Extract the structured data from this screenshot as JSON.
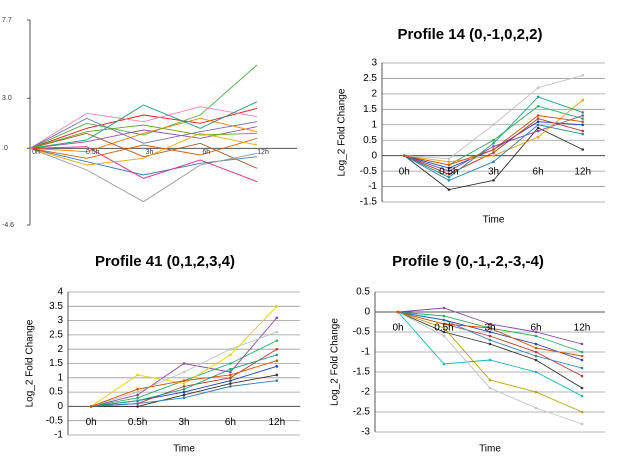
{
  "chart_data": [
    {
      "type": "line",
      "grid": false,
      "categories": [
        "0h",
        "0.5h",
        "3h",
        "6h",
        "12h"
      ],
      "ylim": [
        -4.6,
        7.7
      ],
      "yticks": [
        -4.6,
        {
          "value": 0,
          "label": ".0"
        },
        {
          "value": 3,
          "label": "3.0"
        },
        7.7
      ],
      "series": [
        {
          "color": "#e41a1c",
          "values": [
            0,
            1.2,
            2.0,
            1.5,
            2.4
          ]
        },
        {
          "color": "#377eb8",
          "values": [
            0,
            -0.8,
            -1.6,
            -0.9,
            -0.5
          ]
        },
        {
          "color": "#4daf4a",
          "values": [
            0,
            1.5,
            0.8,
            2.0,
            5.0
          ]
        },
        {
          "color": "#984ea3",
          "values": [
            0,
            0.4,
            1.1,
            0.6,
            1.3
          ]
        },
        {
          "color": "#ff7f00",
          "values": [
            0,
            -0.2,
            0.9,
            1.8,
            1.0
          ]
        },
        {
          "color": "#a65628",
          "values": [
            0,
            0.9,
            -0.5,
            0.3,
            -1.2
          ]
        },
        {
          "color": "#f781bf",
          "values": [
            0,
            2.1,
            1.6,
            2.5,
            1.9
          ]
        },
        {
          "color": "#999999",
          "values": [
            0,
            -1.3,
            -3.2,
            -1.0,
            -0.3
          ]
        },
        {
          "color": "#1b9e77",
          "values": [
            0,
            0.5,
            2.6,
            1.2,
            2.8
          ]
        },
        {
          "color": "#d95f02",
          "values": [
            0,
            -0.6,
            0.2,
            -0.4,
            0.6
          ]
        },
        {
          "color": "#7570b3",
          "values": [
            0,
            1.8,
            0.3,
            1.0,
            1.6
          ]
        },
        {
          "color": "#e7298a",
          "values": [
            0,
            0.1,
            -1.8,
            -0.7,
            -2.0
          ]
        },
        {
          "color": "#66a61e",
          "values": [
            0,
            1.0,
            1.4,
            0.8,
            0.9
          ]
        },
        {
          "color": "#e6ab02",
          "values": [
            0,
            -1.0,
            -0.6,
            0.9,
            0.2
          ]
        }
      ]
    },
    {
      "type": "line",
      "grid": true,
      "title": "Profile 14 (0,-1,0,2,2)",
      "x_label": "Time",
      "y_label": "Log_2 Fold Change",
      "categories": [
        "0h",
        "0.5h",
        "3h",
        "6h",
        "12h"
      ],
      "ylim": [
        -1.5,
        3
      ],
      "yticks": [
        -1.5,
        -1,
        -0.5,
        0,
        0.5,
        1,
        1.5,
        2,
        2.5,
        3
      ],
      "series": [
        {
          "color": "#1f3fbf",
          "values": [
            0,
            -0.4,
            0.2,
            1.1,
            1.0
          ]
        },
        {
          "color": "#c0392b",
          "values": [
            0,
            -0.6,
            0.1,
            1.2,
            0.8
          ]
        },
        {
          "color": "#27ae60",
          "values": [
            0,
            -0.3,
            0.5,
            1.6,
            1.2
          ]
        },
        {
          "color": "#333333",
          "values": [
            0,
            -1.1,
            -0.8,
            0.9,
            0.2
          ]
        },
        {
          "color": "#8e44ad",
          "values": [
            0,
            -0.5,
            0.3,
            0.8,
            1.3
          ]
        },
        {
          "color": "#f39c12",
          "values": [
            0,
            -0.2,
            0.0,
            0.6,
            1.8
          ]
        },
        {
          "color": "#16a085",
          "values": [
            0,
            -0.7,
            0.4,
            1.9,
            1.4
          ]
        },
        {
          "color": "#bdc3c7",
          "values": [
            0,
            -0.1,
            1.0,
            2.2,
            2.6
          ]
        },
        {
          "color": "#2980b9",
          "values": [
            0,
            -0.8,
            -0.2,
            1.0,
            0.7
          ]
        },
        {
          "color": "#d35400",
          "values": [
            0,
            -0.3,
            0.2,
            1.3,
            1.1
          ]
        }
      ]
    },
    {
      "type": "line",
      "grid": true,
      "title": "Profile 41 (0,1,2,3,4)",
      "x_label": "Time",
      "y_label": "Log_2 Fold Change",
      "categories": [
        "0h",
        "0.5h",
        "3h",
        "6h",
        "12h"
      ],
      "ylim": [
        -1,
        4
      ],
      "yticks": [
        -1,
        -0.5,
        0,
        0.5,
        1,
        1.5,
        2,
        2.5,
        3,
        3.5,
        4
      ],
      "series": [
        {
          "color": "#1f3fbf",
          "values": [
            0,
            0.2,
            0.5,
            0.9,
            1.4
          ]
        },
        {
          "color": "#c0392b",
          "values": [
            0,
            0.1,
            0.7,
            1.0,
            2.0
          ]
        },
        {
          "color": "#27ae60",
          "values": [
            0,
            0.3,
            0.9,
            1.5,
            2.3
          ]
        },
        {
          "color": "#333333",
          "values": [
            0,
            0.0,
            0.4,
            0.8,
            1.1
          ]
        },
        {
          "color": "#8e44ad",
          "values": [
            0,
            0.4,
            1.5,
            1.2,
            3.1
          ]
        },
        {
          "color": "#e6d200",
          "values": [
            0,
            1.1,
            0.8,
            1.8,
            3.5
          ]
        },
        {
          "color": "#16a085",
          "values": [
            0,
            0.2,
            0.6,
            1.3,
            1.8
          ]
        },
        {
          "color": "#bdc3c7",
          "values": [
            0,
            0.5,
            1.2,
            2.0,
            2.6
          ]
        },
        {
          "color": "#2980b9",
          "values": [
            0,
            0.1,
            0.3,
            0.7,
            0.9
          ]
        },
        {
          "color": "#d35400",
          "values": [
            0,
            0.6,
            0.9,
            1.1,
            1.6
          ]
        }
      ]
    },
    {
      "type": "line",
      "grid": true,
      "title": "Profile 9 (0,-1,-2,-3,-4)",
      "x_label": "Time",
      "y_label": "Log_2 Fold Change",
      "categories": [
        "0h",
        "0.5h",
        "3h",
        "6h",
        "12h"
      ],
      "ylim": [
        -3,
        0.5
      ],
      "yticks": [
        -3,
        -2.5,
        -2,
        -1.5,
        -1,
        -0.5,
        0,
        0.5
      ],
      "series": [
        {
          "color": "#1f3fbf",
          "values": [
            0,
            -0.2,
            -0.5,
            -0.8,
            -1.2
          ]
        },
        {
          "color": "#c0392b",
          "values": [
            0,
            -0.3,
            -0.6,
            -1.0,
            -1.6
          ]
        },
        {
          "color": "#27ae60",
          "values": [
            0,
            -0.1,
            -0.4,
            -0.6,
            -1.0
          ]
        },
        {
          "color": "#333333",
          "values": [
            0,
            -0.5,
            -0.8,
            -1.2,
            -1.9
          ]
        },
        {
          "color": "#8e44ad",
          "values": [
            0,
            0.1,
            -0.3,
            -0.5,
            -0.8
          ]
        },
        {
          "color": "#b8a000",
          "values": [
            0,
            -0.4,
            -1.7,
            -2.0,
            -2.5
          ]
        },
        {
          "color": "#17b3c4",
          "values": [
            0,
            -1.3,
            -1.2,
            -1.5,
            -2.1
          ]
        },
        {
          "color": "#bdc3c7",
          "values": [
            0,
            -0.6,
            -1.9,
            -2.4,
            -2.8
          ]
        },
        {
          "color": "#2980b9",
          "values": [
            0,
            -0.2,
            -0.7,
            -1.1,
            -1.4
          ]
        },
        {
          "color": "#d35400",
          "values": [
            0,
            -0.3,
            -0.4,
            -0.9,
            -1.1
          ]
        }
      ]
    }
  ]
}
